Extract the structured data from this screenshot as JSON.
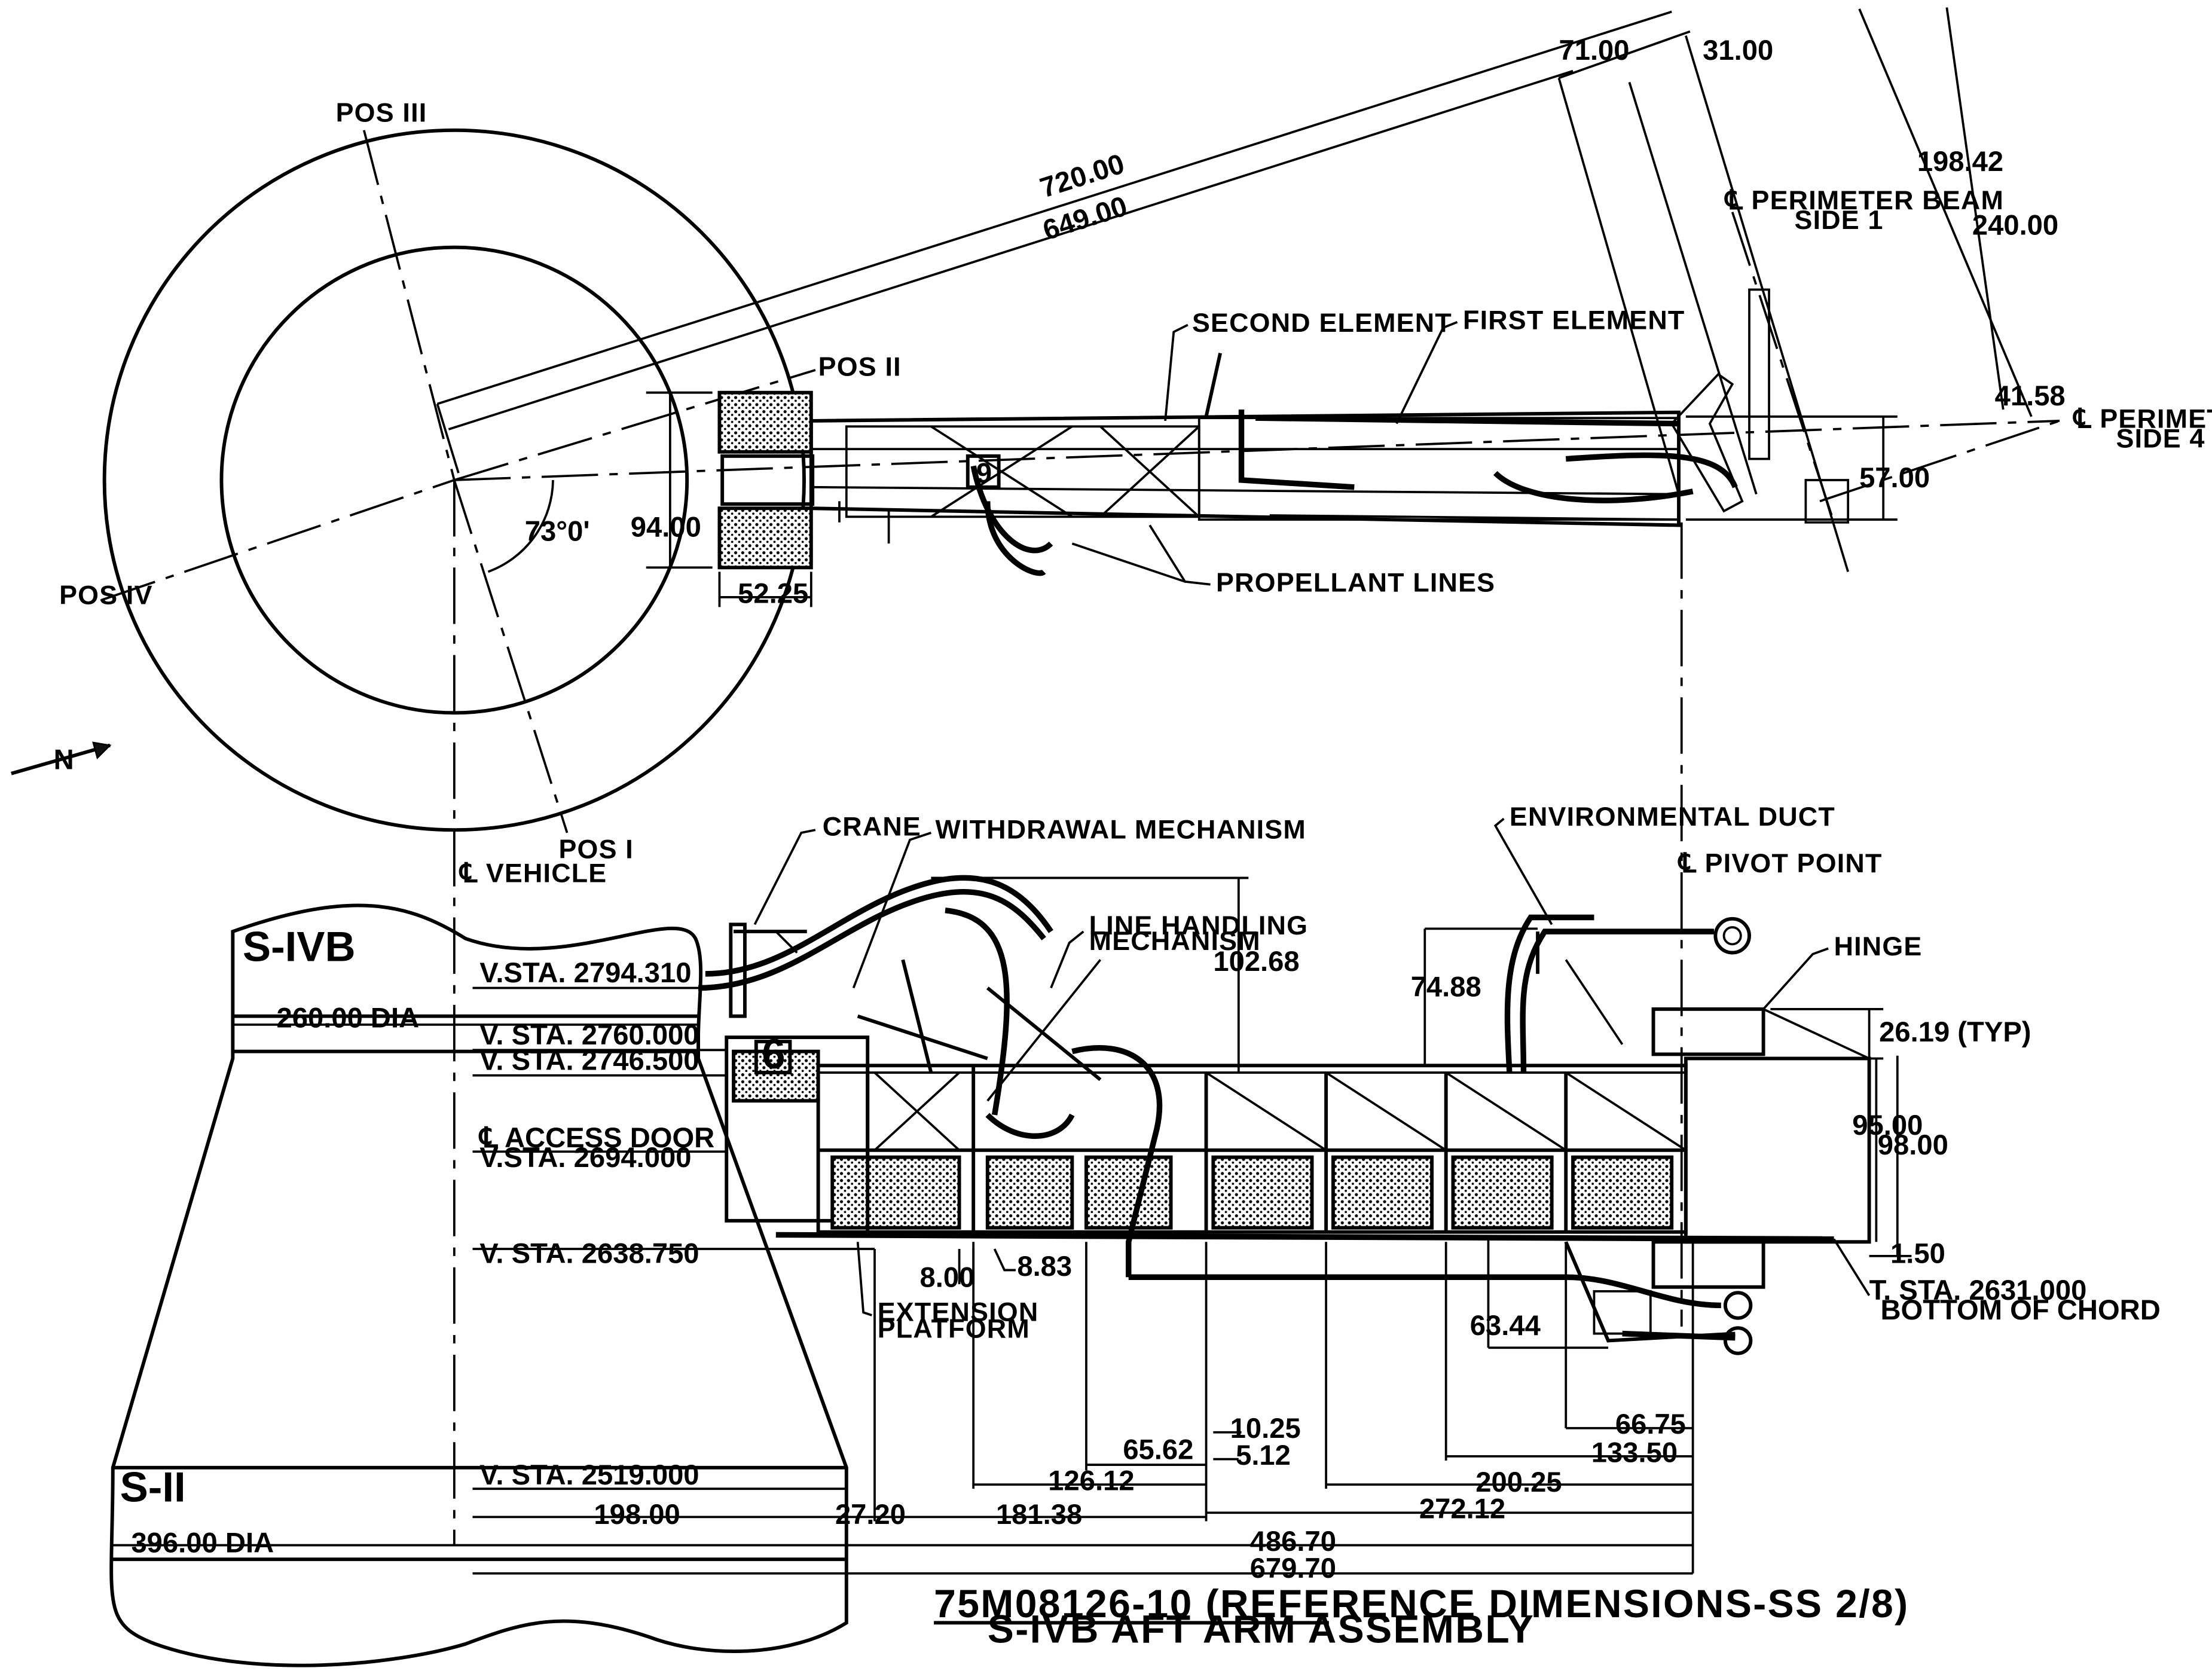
{
  "plan_view": {
    "positions": {
      "pos_1": "POS I",
      "pos_2": "POS II",
      "pos_3": "POS III",
      "pos_4": "POS IV"
    },
    "angle": "73°0'",
    "north_arrow": "N",
    "callouts": {
      "second_element": "SECOND ELEMENT",
      "first_element": "FIRST ELEMENT",
      "propellant_lines": "PROPELLANT LINES",
      "perimeter_beam_side1_l1": "℄ PERIMETER BEAM",
      "perimeter_beam_side1_l2": "SIDE 1",
      "perimeter_beam_side4_l1": "℄ PERIMETER BEAM",
      "perimeter_beam_side4_l2": "SIDE 4"
    },
    "dimensions": {
      "d720": "720.00",
      "d649": "649.00",
      "d71": "71.00",
      "d31": "31.00",
      "d198": "198.42",
      "d240": "240.00",
      "d41": "41.58",
      "d57": "57.00",
      "d94": "94.00",
      "d52": "52.25"
    }
  },
  "elevation_view": {
    "stages": {
      "s4b": "S-IVB",
      "s2": "S-II",
      "vehicle_cl": "℄ VEHICLE",
      "pivot_point": "℄ PIVOT POINT"
    },
    "stations": {
      "s1": "V.STA. 2794.310",
      "s2": "V. STA. 2760.000",
      "s3": "V. STA. 2746.500",
      "access_door": "℄ ACCESS DOOR",
      "s4": "V.STA. 2694.000",
      "s5": "V. STA. 2638.750",
      "s6": "V. STA. 2519.000",
      "tsta_l1": "T. STA. 2631.000",
      "tsta_l2": "BOTTOM OF CHORD"
    },
    "callouts": {
      "crane": "CRANE",
      "withdrawal": "WITHDRAWAL MECHANISM",
      "line_handling_l1": "LINE HANDLING",
      "line_handling_l2": "MECHANISM",
      "env_duct": "ENVIRONMENTAL DUCT",
      "hinge": "HINGE",
      "extension_l1": "EXTENSION",
      "extension_l2": "PLATFORM"
    },
    "dimensions": {
      "dia260": "260.00 DIA",
      "dia396": "396.00 DIA",
      "d102": "102.68",
      "d74": "74.88",
      "d26": "26.19 (TYP)",
      "d95": "95.00",
      "d98": "98.00",
      "d150": "1.50",
      "d63": "63.44",
      "d66": "66.75",
      "d133": "133.50",
      "d200": "200.25",
      "d272": "272.12",
      "d10": "10.25",
      "d5": "5.12",
      "d65": "65.62",
      "d126": "126.12",
      "d181": "181.38",
      "d27": "27.20",
      "d198": "198.00",
      "d486": "486.70",
      "d679": "679.70",
      "d8": "8.00",
      "d883": "8.83"
    },
    "markers": {
      "m6": "6",
      "m9": "9"
    }
  },
  "title_block": {
    "line1": "75M08126-10 (REFERENCE DIMENSIONS-SS 2/8)",
    "line2": "S-IVB AFT ARM ASSEMBLY"
  }
}
